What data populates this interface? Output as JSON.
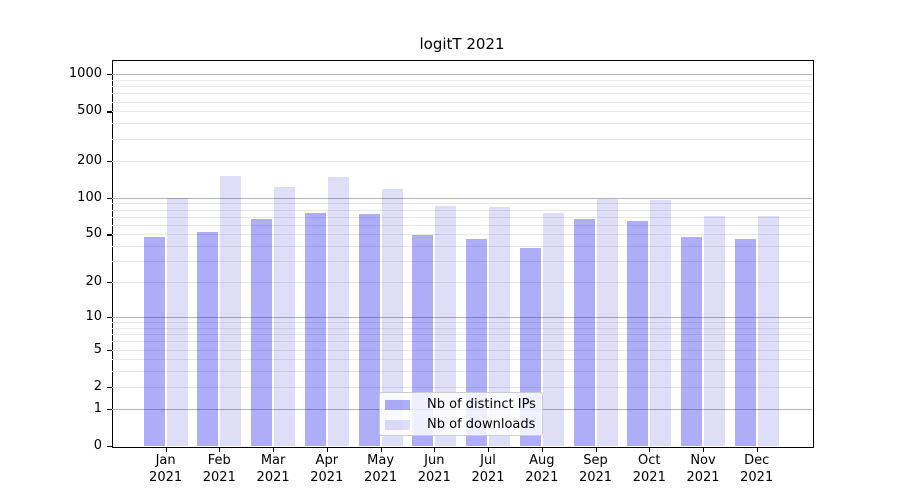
{
  "figure_title": "logitT 2021",
  "chart_data": {
    "type": "bar",
    "title": "logitT 2021",
    "yscale": "log1p-symlog",
    "categories": [
      "Jan 2021",
      "Feb 2021",
      "Mar 2021",
      "Apr 2021",
      "May 2021",
      "Jun 2021",
      "Jul 2021",
      "Aug 2021",
      "Sep 2021",
      "Oct 2021",
      "Nov 2021",
      "Dec 2021"
    ],
    "series": [
      {
        "name": "Nb of distinct IPs",
        "key": "ips",
        "values": [
          48,
          52,
          67,
          75,
          73,
          49,
          46,
          39,
          67,
          64,
          48,
          46
        ]
      },
      {
        "name": "Nb of downloads",
        "key": "downloads",
        "values": [
          100,
          150,
          123,
          148,
          118,
          85,
          84,
          75,
          98,
          95,
          71,
          71
        ]
      }
    ],
    "y_ticks": [
      1000,
      500,
      200,
      100,
      50,
      20,
      10,
      5,
      2,
      1,
      0
    ],
    "ylim": [
      0,
      1300
    ],
    "grid": true,
    "legend_position": "inside-bottom-center",
    "xlabel": "",
    "ylabel": ""
  },
  "legend": {
    "items": [
      {
        "label": "Nb of distinct IPs"
      },
      {
        "label": "Nb of downloads"
      }
    ]
  },
  "colors": {
    "series_ips": "rgba(10,10,235,0.335)",
    "series_downloads": "rgba(25,25,210,0.145)",
    "grid_major": "#b4b4b4",
    "grid_minor": "#e8e8e8",
    "spine": "#000000",
    "background": "#ffffff",
    "legend_border": "#cccccc",
    "legend_bg": "rgba(255,255,255,0.8)",
    "text": "#000000"
  }
}
